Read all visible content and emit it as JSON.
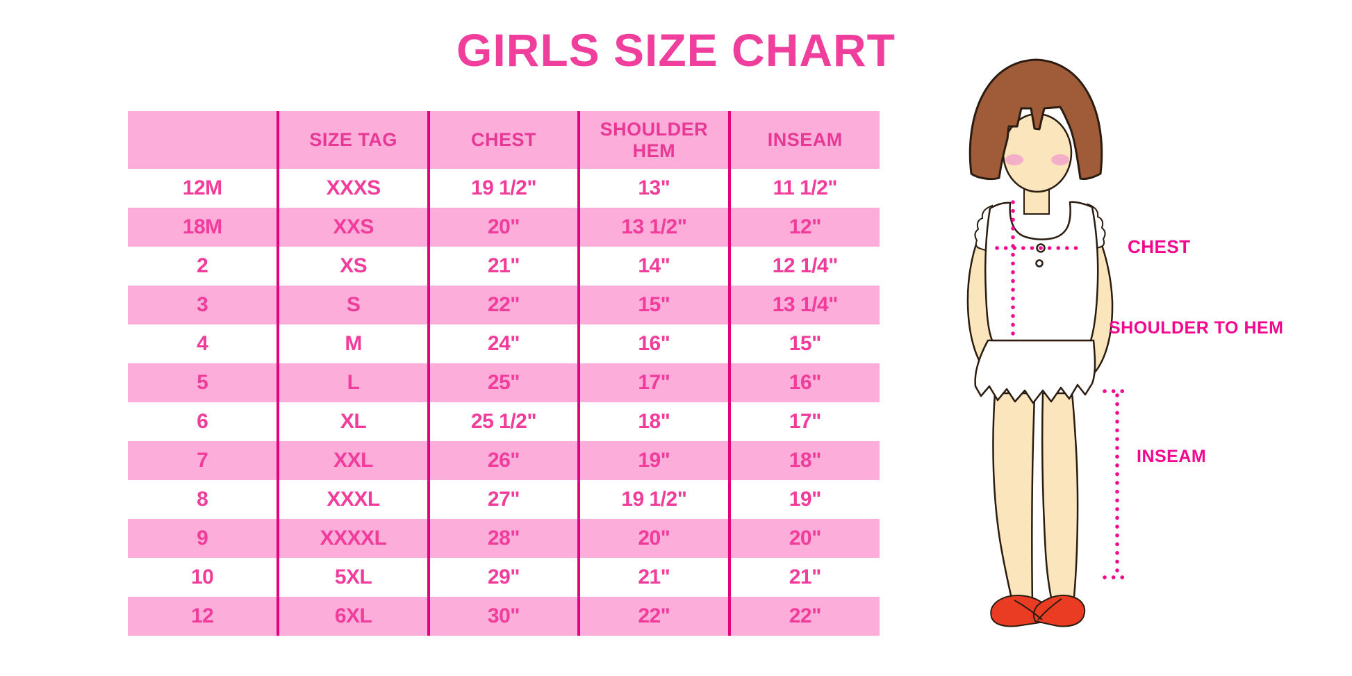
{
  "chart_data": {
    "type": "table",
    "title": "GIRLS SIZE CHART",
    "columns": [
      "",
      "SIZE TAG",
      "CHEST",
      "SHOULDER HEM",
      "INSEAM"
    ],
    "rows": [
      [
        "12M",
        "XXXS",
        "19 1/2\"",
        "13\"",
        "11 1/2\""
      ],
      [
        "18M",
        "XXS",
        "20\"",
        "13 1/2\"",
        "12\""
      ],
      [
        "2",
        "XS",
        "21\"",
        "14\"",
        "12 1/4\""
      ],
      [
        "3",
        "S",
        "22\"",
        "15\"",
        "13 1/4\""
      ],
      [
        "4",
        "M",
        "24\"",
        "16\"",
        "15\""
      ],
      [
        "5",
        "L",
        "25\"",
        "17\"",
        "16\""
      ],
      [
        "6",
        "XL",
        "25 1/2\"",
        "18\"",
        "17\""
      ],
      [
        "7",
        "XXL",
        "26\"",
        "19\"",
        "18\""
      ],
      [
        "8",
        "XXXL",
        "27\"",
        "19 1/2\"",
        "19\""
      ],
      [
        "9",
        "XXXXL",
        "28\"",
        "20\"",
        "20\""
      ],
      [
        "10",
        "5XL",
        "29\"",
        "21\"",
        "21\""
      ],
      [
        "12",
        "6XL",
        "30\"",
        "22\"",
        "22\""
      ]
    ],
    "layout": {
      "row_striping": "alternating white and pink, header pink",
      "column_dividers": "magenta vertical lines, no outer border"
    }
  },
  "diagram": {
    "chest_label": "CHEST",
    "shoulder_to_hem_label": "SHOULDER TO HEM",
    "inseam_label": "INSEAM"
  },
  "colors": {
    "title_pink": "#ef3e9c",
    "row_stripe_pink": "#fcadd9",
    "divider_magenta": "#e4017f",
    "cell_text_pink": "#f23c9c",
    "measure_label_magenta": "#f2078e",
    "hair_brown": "#a05c38",
    "skin_tone": "#fbe5bc",
    "shoe_red": "#e93c22"
  }
}
